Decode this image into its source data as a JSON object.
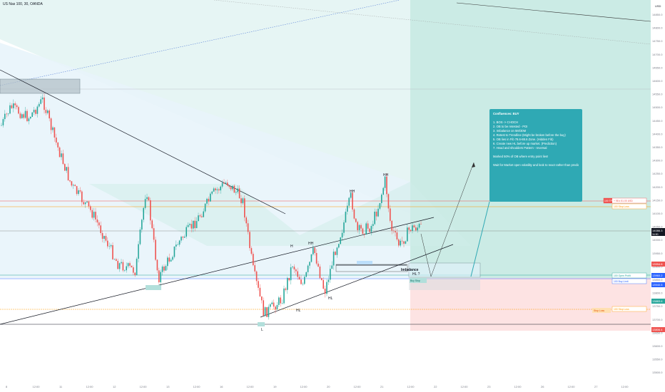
{
  "symbol": "US Nas 100, 30, OANDA",
  "currency": "USD",
  "note": {
    "lines": [
      "Confluences: BUY",
      "",
      "1. BOS -> CHOCH",
      "2. OB to be retested - POI",
      "3. Imbalance on 5M/30M",
      "4. Retest to Trendline (Might be broken before the buy)",
      "5. OB lies in Fib 78.6-88.6 Zone. (Hidden Fib)",
      "6. Create new HL before up market. (Prediction)",
      "7. Head and shoulders Pattern - reversal",
      "",
      "Marked 50% of OB where entry point lies!",
      "",
      "Wait for Market open volatility and look to react rather than predict."
    ]
  },
  "structure_labels": {
    "hh1": "HH",
    "hh2": "HH",
    "h1": "H",
    "hh_small": "HH",
    "hl1": "HL",
    "hl2": "HL",
    "l": "L",
    "hl_new": "HL ?"
  },
  "imbalance_label": "Imbalance",
  "y_axis": {
    "ticks": [
      "14850.0",
      "14800.0",
      "14750.0",
      "14700.0",
      "14650.0",
      "14600.0",
      "14550.0",
      "14500.0",
      "14450.0",
      "14400.0",
      "14350.0",
      "14300.0",
      "14250.0",
      "14200.0",
      "14150.0",
      "14100.0",
      "14050.0",
      "14000.0",
      "13950.0",
      "13900.0",
      "13850.0",
      "13800.0",
      "13750.0",
      "13700.0",
      "13650.0",
      "13600.0",
      "13550.0",
      "13500.0"
    ]
  },
  "x_axis": {
    "ticks": [
      "8",
      "12:00",
      "11",
      "12:00",
      "12",
      "12:00",
      "13",
      "12:00",
      "16",
      "12:00",
      "19",
      "12:00",
      "20",
      "12:00",
      "21",
      "12:00",
      "22",
      "12:00",
      "23",
      "12:00",
      "26",
      "12:00",
      "27",
      "12:00"
    ]
  },
  "price_tags": {
    "current": "14086.3",
    "current_sub": "34:50",
    "red1": "13994.8",
    "blue1": "13960.2",
    "blue2": "13940.5",
    "green1": "13883.6",
    "red2": "13806.4",
    "top": "14963.6"
  },
  "order_lines": {
    "tp_label": "100 TP",
    "tp_detail": "+ 98 k 51.00 USD",
    "sl_top": "100 Stop Loss",
    "entry": "100 Open Profit",
    "buy_limit": "100 Buy Limit",
    "sl_bottom": "100 Stop Loss",
    "stop_left": "Stop Loss",
    "entry_left": "Buy Stop"
  },
  "colors": {
    "up": "#26a69a",
    "down": "#ef5350",
    "teal_zone": "#b2dfdb",
    "note_bg": "#2fa9b4",
    "red_zone": "#ffcdd2"
  }
}
